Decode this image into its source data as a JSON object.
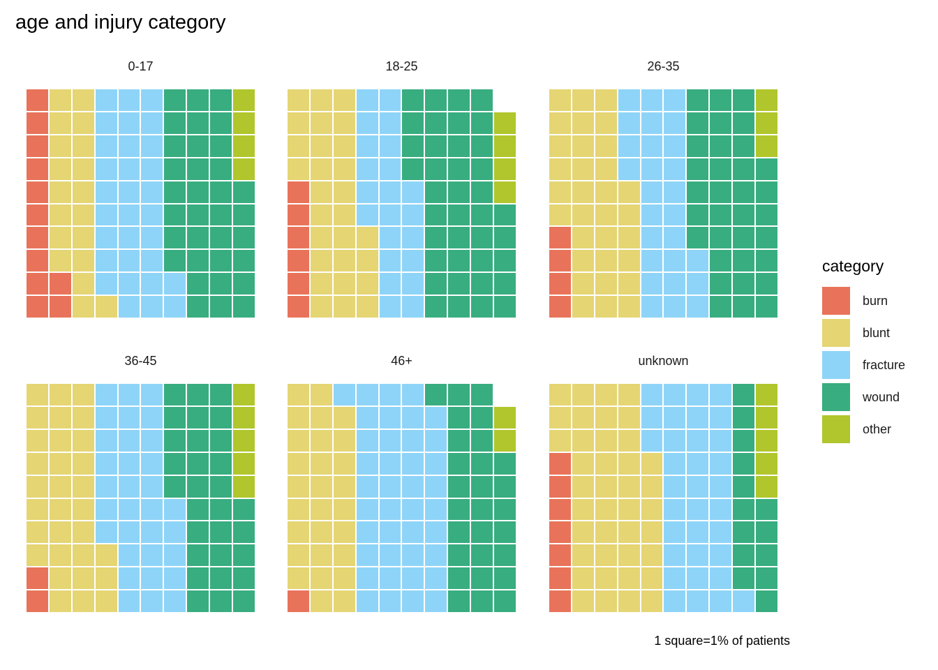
{
  "title": "age and injury category",
  "caption": "1 square=1% of patients",
  "legend": {
    "title": "category",
    "items": [
      {
        "label": "burn",
        "color": "#E8735A"
      },
      {
        "label": "blunt",
        "color": "#E5D573"
      },
      {
        "label": "fracture",
        "color": "#8ED4F8"
      },
      {
        "label": "wound",
        "color": "#38AD80"
      },
      {
        "label": "other",
        "color": "#B0C62C"
      }
    ]
  },
  "chart_data": {
    "type": "waffle",
    "title": "age and injury category",
    "unit_note": "1 square=1% of patients",
    "rows": 10,
    "columns": 10,
    "fill_order": "column-major left-to-right, bottom-to-top within each column",
    "categories": [
      "burn",
      "blunt",
      "fracture",
      "wound",
      "other"
    ],
    "legend_position": "right",
    "panels": [
      {
        "label": "0-17",
        "values": {
          "burn": 12,
          "blunt": 19,
          "fracture": 31,
          "wound": 34,
          "other": 4
        },
        "total": 100
      },
      {
        "label": "18-25",
        "values": {
          "burn": 6,
          "blunt": 28,
          "fracture": 22,
          "wound": 39,
          "other": 4
        },
        "total": 99
      },
      {
        "label": "26-35",
        "values": {
          "burn": 4,
          "blunt": 32,
          "fracture": 27,
          "wound": 34,
          "other": 3
        },
        "total": 100
      },
      {
        "label": "36-45",
        "values": {
          "burn": 2,
          "blunt": 31,
          "fracture": 32,
          "wound": 30,
          "other": 5
        },
        "total": 100
      },
      {
        "label": "46+",
        "values": {
          "burn": 1,
          "blunt": 28,
          "fracture": 40,
          "wound": 28,
          "other": 2
        },
        "total": 99
      },
      {
        "label": "unknown",
        "values": {
          "burn": 7,
          "blunt": 40,
          "fracture": 34,
          "wound": 14,
          "other": 5
        },
        "total": 100
      }
    ]
  }
}
